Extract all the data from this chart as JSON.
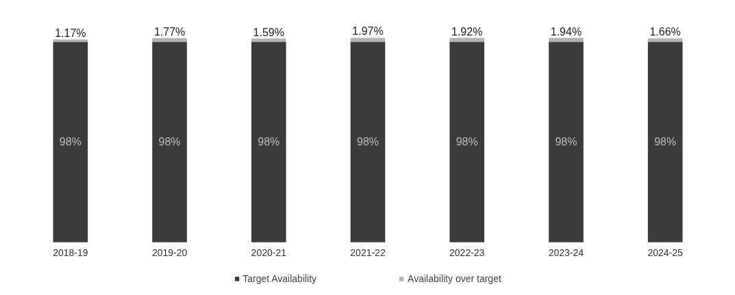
{
  "chart_data": {
    "type": "bar",
    "stacked": true,
    "categories": [
      "2018-19",
      "2019-20",
      "2020-21",
      "2021-22",
      "2022-23",
      "2023-24",
      "2024-25"
    ],
    "series": [
      {
        "name": "Target Availability",
        "color": "#3b3b3b",
        "values": [
          98,
          98,
          98,
          98,
          98,
          98,
          98
        ],
        "value_labels": [
          "98%",
          "98%",
          "98%",
          "98%",
          "98%",
          "98%",
          "98%"
        ]
      },
      {
        "name": "Availability over target",
        "color": "#b3b3b3",
        "values": [
          1.17,
          1.77,
          1.59,
          1.97,
          1.92,
          1.94,
          1.66
        ],
        "value_labels": [
          "1.17%",
          "1.77%",
          "1.59%",
          "1.97%",
          "1.92%",
          "1.94%",
          "1.66%"
        ]
      }
    ],
    "legend": "bottom"
  }
}
